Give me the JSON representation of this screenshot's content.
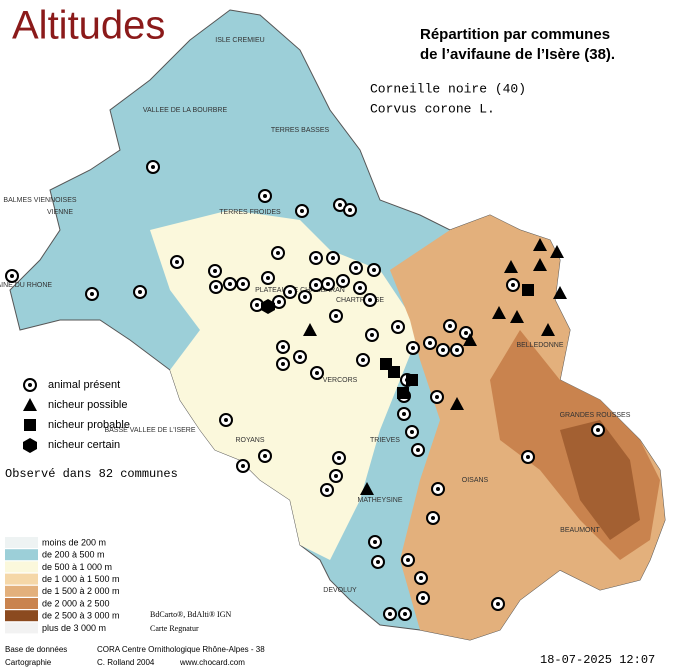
{
  "header": {
    "title": "Altitudes",
    "subtitle_line1": "Répartition par communes",
    "subtitle_line2": "de l’avifaune de l’Isère (38).",
    "species": "Corneille noire  (40)",
    "latin": "Corvus corone L."
  },
  "legend": {
    "items": [
      "animal présent",
      "nicheur possible",
      "nicheur probable",
      "nicheur certain"
    ],
    "observed": "Observé dans 82 communes"
  },
  "altitudes": [
    "moins de 200 m",
    "de 200 à 500 m",
    "de 500 à 1 000 m",
    "de 1 000 à 1 500 m",
    "de 1 500 à 2 000 m",
    "de 2 000 à 2 500",
    "de 2 500 à 3 000 m",
    "plus de 3 000 m"
  ],
  "places": [
    "ISLE CREMIEU",
    "VALLEE DE LA BOURBRE",
    "TERRES BASSES",
    "BALMES VIENNOISES",
    "VIENNE",
    "PLAINE DU RHONE",
    "TERRES FROIDES",
    "CHARTREUSE",
    "PLATEAU DE CHAMBARAN",
    "VERCORS",
    "ROYANS",
    "BELLEDONNE",
    "GRANDES ROUSSES",
    "TRIEVES",
    "MATHEYSINE",
    "OISANS",
    "BEAUMONT",
    "DEVOLUY",
    "BASSE VALLEE DE L'ISERE"
  ],
  "footer": {
    "sources": "BdCarto®, BdAlti® IGN",
    "regnatur": "Carte Regnatur",
    "db_label": "Base de données",
    "db": "CORA Centre Ornithologique Rhône-Alpes - 38",
    "carto_label": "Cartographie",
    "carto": "C. Rolland 2004",
    "site": "www.chocard.com",
    "date": "18-07-2025 12:07"
  }
}
